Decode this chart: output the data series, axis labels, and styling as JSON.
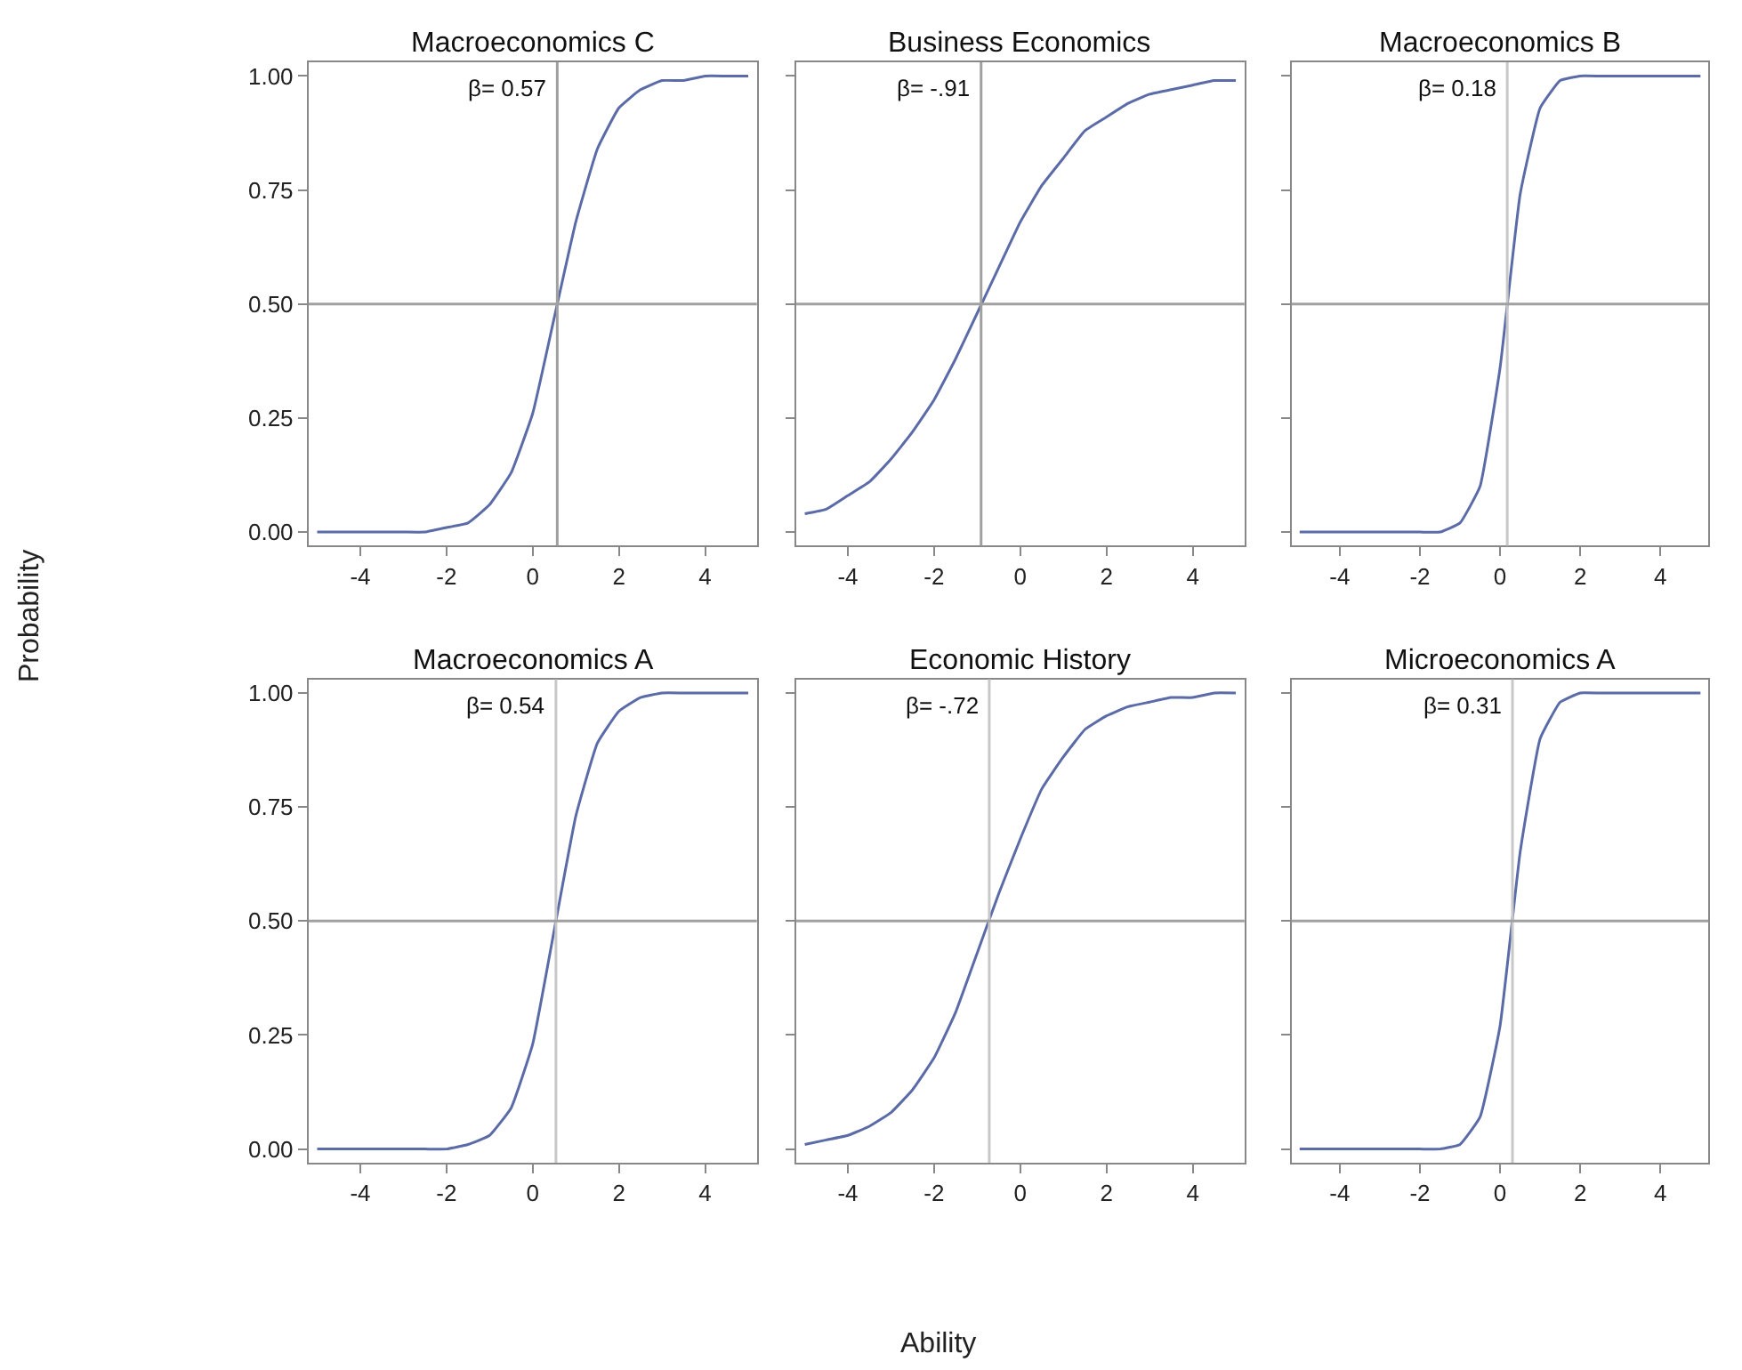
{
  "chart_data": [
    {
      "type": "line",
      "title": "Macroeconomics C",
      "ylabel": "Probability",
      "x": [
        -5,
        -4.5,
        -4,
        -3.5,
        -3,
        -2.5,
        -2,
        -1.5,
        -1,
        -0.5,
        0,
        0.5,
        1,
        1.5,
        2,
        2.5,
        3,
        3.5,
        4,
        4.5,
        5
      ],
      "series": [
        {
          "color": "#5b6ba8",
          "values": [
            0.0,
            0.0,
            0.0,
            0.0,
            0.0,
            0.0,
            0.01,
            0.02,
            0.06,
            0.13,
            0.26,
            0.47,
            0.68,
            0.84,
            0.93,
            0.97,
            0.99,
            0.99,
            1.0,
            1.0,
            1.0
          ]
        }
      ],
      "xlim": [
        -5.2,
        5.2
      ],
      "xticks": [
        -4,
        -2,
        0,
        2,
        4
      ],
      "ylim": [
        -0.03,
        1.03
      ],
      "yticks": [
        {
          "value": 0,
          "label": "0.00"
        },
        {
          "value": 0.25,
          "label": "0.25"
        },
        {
          "value": 0.5,
          "label": "0.50"
        },
        {
          "value": 0.75,
          "label": "0.75"
        },
        {
          "value": 1,
          "label": "1.00"
        }
      ],
      "ref_lines": [
        {
          "axis": "x",
          "value": 0.57,
          "label": "β= 0.57",
          "color": "#a0a0a0"
        },
        {
          "axis": "y",
          "value": 0.5,
          "color": "#a0a0a0"
        }
      ]
    },
    {
      "type": "line",
      "title": "Business Economics",
      "x": [
        -5,
        -4.5,
        -4,
        -3.5,
        -3,
        -2.5,
        -2,
        -1.5,
        -1,
        -0.5,
        0,
        0.5,
        1,
        1.5,
        2,
        2.5,
        3,
        3.5,
        4,
        4.5,
        5
      ],
      "series": [
        {
          "color": "#5b6ba8",
          "values": [
            0.04,
            0.05,
            0.08,
            0.11,
            0.16,
            0.22,
            0.29,
            0.38,
            0.48,
            0.58,
            0.68,
            0.76,
            0.82,
            0.88,
            0.91,
            0.94,
            0.96,
            0.97,
            0.98,
            0.99,
            0.99
          ]
        }
      ],
      "xlim": [
        -5.2,
        5.2
      ],
      "xticks": [
        -4,
        -2,
        0,
        2,
        4
      ],
      "ylim": [
        -0.03,
        1.03
      ],
      "yticks": [
        {
          "value": 0,
          "label": null
        },
        {
          "value": 0.25,
          "label": null
        },
        {
          "value": 0.5,
          "label": null
        },
        {
          "value": 0.75,
          "label": null
        },
        {
          "value": 1,
          "label": null
        }
      ],
      "tick_labels": "x",
      "ref_lines": [
        {
          "axis": "x",
          "value": -0.91,
          "label": "β= -.91",
          "color": "#a0a0a0"
        },
        {
          "axis": "y",
          "value": 0.5,
          "color": "#a0a0a0"
        }
      ]
    },
    {
      "type": "line",
      "title": "Macroeconomics B",
      "x": [
        -5,
        -4.5,
        -4,
        -3.5,
        -3,
        -2.5,
        -2,
        -1.5,
        -1,
        -0.5,
        0,
        0.5,
        1,
        1.5,
        2,
        2.5,
        3,
        3.5,
        4,
        4.5,
        5
      ],
      "series": [
        {
          "color": "#5b6ba8",
          "values": [
            0.0,
            0.0,
            0.0,
            0.0,
            0.0,
            0.0,
            0.0,
            0.0,
            0.02,
            0.1,
            0.36,
            0.74,
            0.93,
            0.99,
            1.0,
            1.0,
            1.0,
            1.0,
            1.0,
            1.0,
            1.0
          ]
        }
      ],
      "xlim": [
        -5.2,
        5.2
      ],
      "xticks": [
        -4,
        -2,
        0,
        2,
        4
      ],
      "ylim": [
        -0.03,
        1.03
      ],
      "yticks": [
        {
          "value": 0,
          "label": null
        },
        {
          "value": 0.25,
          "label": null
        },
        {
          "value": 0.5,
          "label": null
        },
        {
          "value": 0.75,
          "label": null
        },
        {
          "value": 1,
          "label": null
        }
      ],
      "tick_labels": "x",
      "ref_lines": [
        {
          "axis": "x",
          "value": 0.18,
          "label": "β= 0.18",
          "color": "#c8c8c8"
        },
        {
          "axis": "y",
          "value": 0.5,
          "color": "#a0a0a0"
        }
      ]
    },
    {
      "type": "line",
      "title": "Macroeconomics A",
      "x": [
        -5,
        -4.5,
        -4,
        -3.5,
        -3,
        -2.5,
        -2,
        -1.5,
        -1,
        -0.5,
        0,
        0.5,
        1,
        1.5,
        2,
        2.5,
        3,
        3.5,
        4,
        4.5,
        5
      ],
      "series": [
        {
          "color": "#5b6ba8",
          "values": [
            0.0,
            0.0,
            0.0,
            0.0,
            0.0,
            0.0,
            0.0,
            0.01,
            0.03,
            0.09,
            0.23,
            0.48,
            0.73,
            0.89,
            0.96,
            0.99,
            1.0,
            1.0,
            1.0,
            1.0,
            1.0
          ]
        }
      ],
      "xlim": [
        -5.2,
        5.2
      ],
      "xticks": [
        -4,
        -2,
        0,
        2,
        4
      ],
      "ylim": [
        -0.03,
        1.03
      ],
      "yticks": [
        {
          "value": 0,
          "label": "0.00"
        },
        {
          "value": 0.25,
          "label": "0.25"
        },
        {
          "value": 0.5,
          "label": "0.50"
        },
        {
          "value": 0.75,
          "label": "0.75"
        },
        {
          "value": 1,
          "label": "1.00"
        }
      ],
      "ref_lines": [
        {
          "axis": "x",
          "value": 0.54,
          "label": "β= 0.54",
          "color": "#c8c8c8"
        },
        {
          "axis": "y",
          "value": 0.5,
          "color": "#a0a0a0"
        }
      ]
    },
    {
      "type": "line",
      "title": "Economic History",
      "xlabel": "Ability",
      "x": [
        -5,
        -4.5,
        -4,
        -3.5,
        -3,
        -2.5,
        -2,
        -1.5,
        -1,
        -0.5,
        0,
        0.5,
        1,
        1.5,
        2,
        2.5,
        3,
        3.5,
        4,
        4.5,
        5
      ],
      "series": [
        {
          "color": "#5b6ba8",
          "values": [
            0.01,
            0.02,
            0.03,
            0.05,
            0.08,
            0.13,
            0.2,
            0.3,
            0.43,
            0.56,
            0.68,
            0.79,
            0.86,
            0.92,
            0.95,
            0.97,
            0.98,
            0.99,
            0.99,
            1.0,
            1.0
          ]
        }
      ],
      "xlim": [
        -5.2,
        5.2
      ],
      "xticks": [
        -4,
        -2,
        0,
        2,
        4
      ],
      "ylim": [
        -0.03,
        1.03
      ],
      "yticks": [
        {
          "value": 0,
          "label": null
        },
        {
          "value": 0.25,
          "label": null
        },
        {
          "value": 0.5,
          "label": null
        },
        {
          "value": 0.75,
          "label": null
        },
        {
          "value": 1,
          "label": null
        }
      ],
      "tick_labels": "x",
      "ref_lines": [
        {
          "axis": "x",
          "value": -0.72,
          "label": "β= -.72",
          "color": "#c8c8c8"
        },
        {
          "axis": "y",
          "value": 0.5,
          "color": "#a0a0a0"
        }
      ]
    },
    {
      "type": "line",
      "title": "Microeconomics A",
      "x": [
        -5,
        -4.5,
        -4,
        -3.5,
        -3,
        -2.5,
        -2,
        -1.5,
        -1,
        -0.5,
        0,
        0.5,
        1,
        1.5,
        2,
        2.5,
        3,
        3.5,
        4,
        4.5,
        5
      ],
      "series": [
        {
          "color": "#5b6ba8",
          "values": [
            0.0,
            0.0,
            0.0,
            0.0,
            0.0,
            0.0,
            0.0,
            0.0,
            0.01,
            0.07,
            0.27,
            0.65,
            0.9,
            0.98,
            1.0,
            1.0,
            1.0,
            1.0,
            1.0,
            1.0,
            1.0
          ]
        }
      ],
      "xlim": [
        -5.2,
        5.2
      ],
      "xticks": [
        -4,
        -2,
        0,
        2,
        4
      ],
      "ylim": [
        -0.03,
        1.03
      ],
      "yticks": [
        {
          "value": 0,
          "label": null
        },
        {
          "value": 0.25,
          "label": null
        },
        {
          "value": 0.5,
          "label": null
        },
        {
          "value": 0.75,
          "label": null
        },
        {
          "value": 1,
          "label": null
        }
      ],
      "tick_labels": "x",
      "ref_lines": [
        {
          "axis": "x",
          "value": 0.31,
          "label": "β= 0.31",
          "color": "#c8c8c8"
        },
        {
          "axis": "y",
          "value": 0.5,
          "color": "#a0a0a0"
        }
      ]
    }
  ]
}
